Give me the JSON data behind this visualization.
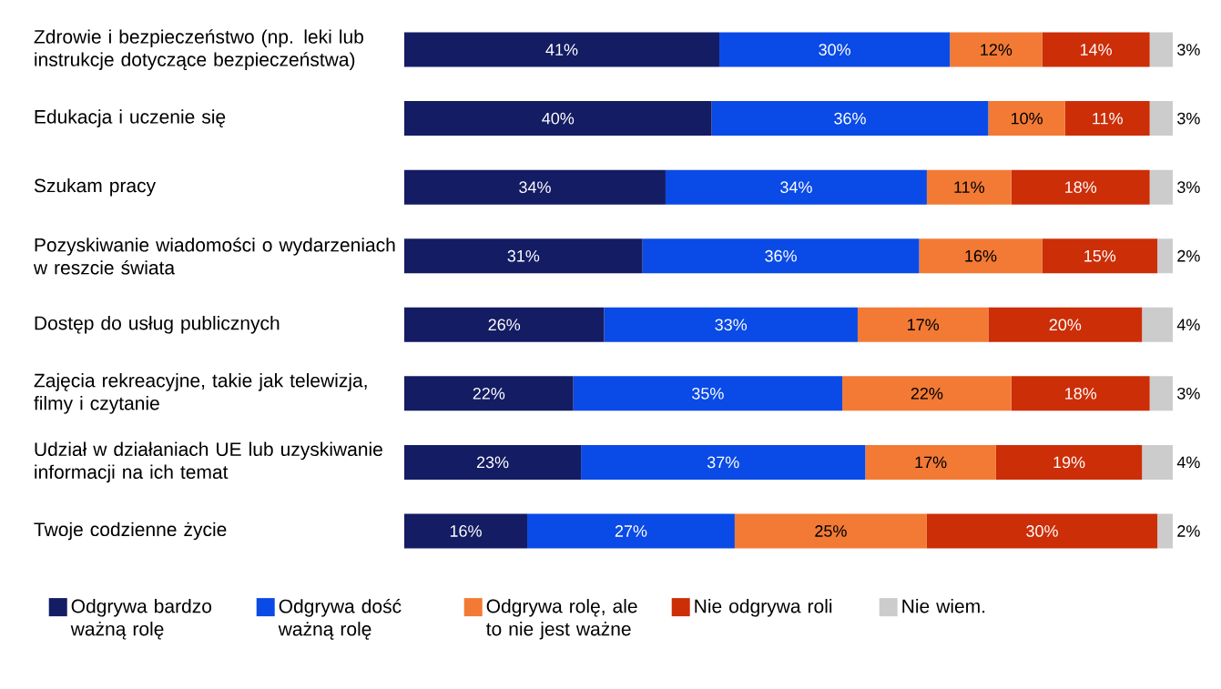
{
  "chart_data": {
    "type": "bar",
    "orientation": "horizontal",
    "stacked": true,
    "legend": "bottom",
    "tick_labels": "y",
    "xlim": [
      0,
      100
    ],
    "categories": [
      "Zdrowie i bezpieczeństwo (np. leki lub instrukcje dotyczące bezpieczeństwa)",
      "Edukacja i uczenie się",
      "Szukam pracy",
      "Pozyskiwanie wiadomości o wydarzeniach w reszcie świata",
      "Dostęp do usług publicznych",
      "Zajęcia rekreacyjne, takie jak telewizja, filmy i czytanie",
      "Udział w działaniach UE lub uzyskiwanie informacji na ich temat",
      "Twoje codzienne życie"
    ],
    "series": [
      {
        "name": "Odgrywa bardzo ważną rolę",
        "color": "#141c64",
        "values": [
          41,
          40,
          34,
          31,
          26,
          22,
          23,
          16
        ],
        "value_labels": [
          "41%",
          "40%",
          "34%",
          "31%",
          "26%",
          "22%",
          "23%",
          "16%"
        ]
      },
      {
        "name": "Odgrywa dość ważną rolę",
        "color": "#0a4ae6",
        "values": [
          30,
          36,
          34,
          36,
          33,
          35,
          37,
          27
        ],
        "value_labels": [
          "30%",
          "36%",
          "34%",
          "36%",
          "33%",
          "35%",
          "37%",
          "27%"
        ]
      },
      {
        "name": "Odgrywa rolę, ale to nie jest ważne",
        "color": "#f27a35",
        "values": [
          12,
          10,
          11,
          16,
          17,
          22,
          17,
          25
        ],
        "value_labels": [
          "12%",
          "10%",
          "11%",
          "16%",
          "17%",
          "22%",
          "17%",
          "25%"
        ]
      },
      {
        "name": "Nie odgrywa roli",
        "color": "#cc2e08",
        "values": [
          14,
          11,
          18,
          15,
          20,
          18,
          19,
          30
        ],
        "value_labels": [
          "14%",
          "11%",
          "18%",
          "15%",
          "20%",
          "18%",
          "19%",
          "30%"
        ]
      },
      {
        "name": "Nie wiem.",
        "color": "#cccccc",
        "values": [
          3,
          3,
          3,
          2,
          4,
          3,
          4,
          2
        ],
        "value_labels": [
          "3%",
          "3%",
          "3%",
          "2%",
          "4%",
          "3%",
          "4%",
          "2%"
        ]
      }
    ]
  }
}
